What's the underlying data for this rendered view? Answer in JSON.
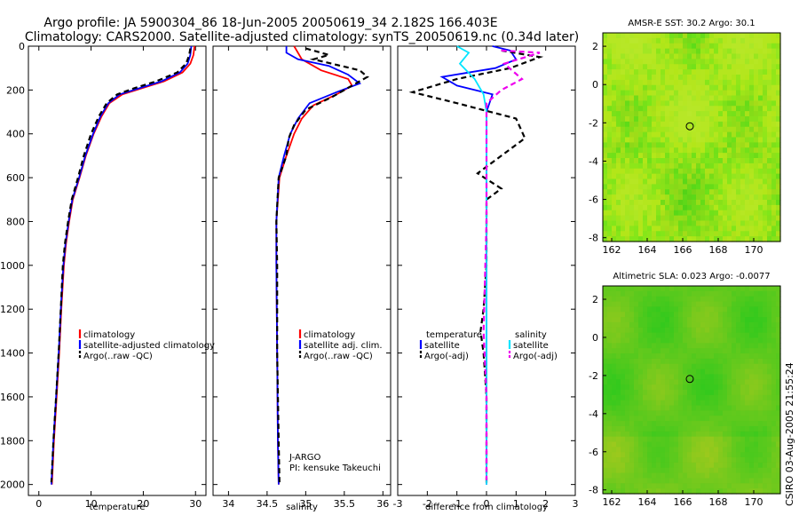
{
  "header": {
    "line1": "Argo profile: JA 5900304_86 18-Jun-2005 20050619_34 2.182S 166.403E",
    "line2": "Climatology: CARS2000. Satellite-adjusted climatology: synTS_20050619.nc (0.34d later)"
  },
  "colors": {
    "climatology": "#ff0000",
    "satellite": "#0000ff",
    "argo": "#000000",
    "sat_diff": "#00e5ff",
    "adj_diff": "#ee00ee"
  },
  "footer_stamp": "CSIRO 03-Aug-2005 21:55:24",
  "credit": {
    "line1": "J-ARGO",
    "line2": "PI: kensuke Takeuchi"
  },
  "chart_data": [
    {
      "type": "line",
      "panel": "temperature",
      "xlabel": "temperature",
      "ylabel": "",
      "xlim": [
        -2,
        32
      ],
      "ylim": [
        2050,
        0
      ],
      "xticks": [
        "0",
        "10",
        "20",
        "30"
      ],
      "xtick_values": [
        0,
        10,
        20,
        30
      ],
      "yticks": [
        "0",
        "200",
        "400",
        "600",
        "800",
        "1000",
        "1200",
        "1400",
        "1600",
        "1800",
        "2000"
      ],
      "ytick_values": [
        0,
        200,
        400,
        600,
        800,
        1000,
        1200,
        1400,
        1600,
        1800,
        2000
      ],
      "legend": [
        "climatology",
        "satellite-adjusted climatology",
        "Argo(..raw -QC)"
      ],
      "series": [
        {
          "name": "climatology",
          "style": "solid",
          "color": "#ff0000",
          "points": [
            [
              29.8,
              0
            ],
            [
              29.6,
              40
            ],
            [
              29.0,
              80
            ],
            [
              27.5,
              120
            ],
            [
              24.0,
              160
            ],
            [
              20.0,
              190
            ],
            [
              16.0,
              220
            ],
            [
              13.5,
              260
            ],
            [
              12.0,
              320
            ],
            [
              10.5,
              400
            ],
            [
              9.0,
              500
            ],
            [
              7.8,
              600
            ],
            [
              6.5,
              700
            ],
            [
              5.8,
              800
            ],
            [
              5.2,
              900
            ],
            [
              4.8,
              1000
            ],
            [
              4.3,
              1200
            ],
            [
              3.9,
              1400
            ],
            [
              3.4,
              1600
            ],
            [
              2.9,
              1800
            ],
            [
              2.5,
              2000
            ]
          ]
        },
        {
          "name": "satellite-adjusted climatology",
          "style": "solid",
          "color": "#0000ff",
          "points": [
            [
              29.2,
              0
            ],
            [
              29.0,
              40
            ],
            [
              28.5,
              80
            ],
            [
              27.0,
              120
            ],
            [
              23.5,
              160
            ],
            [
              19.5,
              190
            ],
            [
              15.5,
              220
            ],
            [
              13.3,
              260
            ],
            [
              11.8,
              320
            ],
            [
              10.4,
              400
            ],
            [
              8.9,
              500
            ],
            [
              7.7,
              600
            ],
            [
              6.4,
              700
            ],
            [
              5.7,
              800
            ],
            [
              5.1,
              900
            ],
            [
              4.7,
              1000
            ],
            [
              4.2,
              1200
            ],
            [
              3.8,
              1400
            ],
            [
              3.3,
              1600
            ],
            [
              2.8,
              1800
            ],
            [
              2.4,
              2000
            ]
          ]
        },
        {
          "name": "Argo(..raw -QC)",
          "style": "dashed",
          "color": "#000000",
          "points": [
            [
              29.0,
              10
            ],
            [
              28.8,
              40
            ],
            [
              28.2,
              80
            ],
            [
              26.5,
              120
            ],
            [
              22.5,
              160
            ],
            [
              18.5,
              190
            ],
            [
              15.0,
              220
            ],
            [
              13.0,
              260
            ],
            [
              11.5,
              320
            ],
            [
              10.0,
              400
            ],
            [
              8.6,
              500
            ],
            [
              7.5,
              600
            ],
            [
              6.3,
              700
            ],
            [
              5.6,
              800
            ],
            [
              5.0,
              900
            ],
            [
              4.6,
              1000
            ],
            [
              4.2,
              1200
            ],
            [
              3.8,
              1400
            ],
            [
              3.3,
              1600
            ],
            [
              2.8,
              1800
            ],
            [
              2.4,
              1990
            ]
          ]
        }
      ]
    },
    {
      "type": "line",
      "panel": "salinity",
      "xlabel": "salinity",
      "xlim": [
        33.8,
        36.1
      ],
      "ylim": [
        2050,
        0
      ],
      "xticks": [
        "34",
        "34.5",
        "35",
        "35.5",
        "36"
      ],
      "xtick_values": [
        34,
        34.5,
        35,
        35.5,
        36
      ],
      "legend": [
        "climatology",
        "satellite adj. clim.",
        "Argo(..raw -QC)"
      ],
      "series": [
        {
          "name": "climatology",
          "style": "solid",
          "color": "#ff0000",
          "points": [
            [
              34.85,
              0
            ],
            [
              34.95,
              60
            ],
            [
              35.2,
              110
            ],
            [
              35.55,
              150
            ],
            [
              35.6,
              180
            ],
            [
              35.4,
              220
            ],
            [
              35.1,
              270
            ],
            [
              34.95,
              330
            ],
            [
              34.85,
              400
            ],
            [
              34.75,
              500
            ],
            [
              34.66,
              600
            ],
            [
              34.62,
              800
            ],
            [
              34.62,
              1000
            ],
            [
              34.63,
              1400
            ],
            [
              34.64,
              1800
            ],
            [
              34.65,
              2000
            ]
          ]
        },
        {
          "name": "satellite adj. clim.",
          "style": "solid",
          "color": "#0000ff",
          "points": [
            [
              34.75,
              0
            ],
            [
              34.75,
              30
            ],
            [
              34.9,
              60
            ],
            [
              35.3,
              90
            ],
            [
              35.55,
              130
            ],
            [
              35.7,
              170
            ],
            [
              35.4,
              210
            ],
            [
              35.05,
              260
            ],
            [
              34.9,
              330
            ],
            [
              34.8,
              400
            ],
            [
              34.72,
              500
            ],
            [
              34.65,
              600
            ],
            [
              34.62,
              800
            ],
            [
              34.62,
              1000
            ],
            [
              34.63,
              1400
            ],
            [
              34.64,
              1800
            ],
            [
              34.65,
              2000
            ]
          ]
        },
        {
          "name": "Argo(..raw -QC)",
          "style": "dashed",
          "color": "#000000",
          "points": [
            [
              35.0,
              10
            ],
            [
              35.3,
              40
            ],
            [
              35.1,
              60
            ],
            [
              35.7,
              110
            ],
            [
              35.8,
              140
            ],
            [
              35.6,
              180
            ],
            [
              35.35,
              230
            ],
            [
              35.0,
              290
            ],
            [
              34.85,
              360
            ],
            [
              34.78,
              420
            ],
            [
              34.75,
              500
            ],
            [
              34.65,
              600
            ],
            [
              34.62,
              800
            ],
            [
              34.63,
              1000
            ],
            [
              34.63,
              1400
            ],
            [
              34.65,
              1800
            ],
            [
              34.66,
              1990
            ]
          ]
        }
      ]
    },
    {
      "type": "line",
      "panel": "difference",
      "xlabel": "difference from climatology",
      "xlim": [
        -3,
        3
      ],
      "ylim": [
        2050,
        0
      ],
      "xticks": [
        "-3",
        "-2",
        "-1",
        "0",
        "1",
        "2",
        "3"
      ],
      "xtick_values": [
        -3,
        -2,
        -1,
        0,
        1,
        2,
        3
      ],
      "legend_left_title": "temperature",
      "legend_left": [
        "satellite",
        "Argo(-adj)"
      ],
      "legend_right_title": "salinity",
      "legend_right": [
        "satellite",
        "Argo(-adj)"
      ],
      "series": [
        {
          "name": "temperature satellite",
          "style": "solid",
          "color": "#0000ff",
          "points": [
            [
              0.2,
              0
            ],
            [
              0.8,
              20
            ],
            [
              1.0,
              60
            ],
            [
              0.3,
              100
            ],
            [
              -1.5,
              140
            ],
            [
              -1.0,
              180
            ],
            [
              0.2,
              220
            ],
            [
              0.0,
              300
            ],
            [
              0.0,
              600
            ],
            [
              0.0,
              1000
            ],
            [
              0.0,
              1600
            ],
            [
              0.0,
              2000
            ]
          ]
        },
        {
          "name": "temperature Argo(-adj)",
          "style": "dashed",
          "color": "#000000",
          "points": [
            [
              0.5,
              20
            ],
            [
              1.8,
              50
            ],
            [
              0.8,
              100
            ],
            [
              -1.0,
              150
            ],
            [
              -2.5,
              210
            ],
            [
              -1.0,
              260
            ],
            [
              1.0,
              330
            ],
            [
              1.3,
              420
            ],
            [
              0.5,
              500
            ],
            [
              -0.3,
              580
            ],
            [
              0.5,
              650
            ],
            [
              0.0,
              700
            ],
            [
              0.0,
              1000
            ],
            [
              -0.1,
              1200
            ],
            [
              -0.2,
              1300
            ],
            [
              -0.1,
              1400
            ],
            [
              0.0,
              1600
            ],
            [
              0.0,
              2000
            ]
          ]
        },
        {
          "name": "salinity satellite",
          "style": "solid",
          "color": "#00e5ff",
          "points": [
            [
              -1.0,
              0
            ],
            [
              -0.6,
              30
            ],
            [
              -0.9,
              80
            ],
            [
              -0.4,
              150
            ],
            [
              -0.1,
              220
            ],
            [
              0.0,
              300
            ],
            [
              0.0,
              1000
            ],
            [
              0.0,
              2000
            ]
          ]
        },
        {
          "name": "salinity Argo(-adj)",
          "style": "dashed",
          "color": "#ee00ee",
          "points": [
            [
              0.5,
              20
            ],
            [
              1.8,
              30
            ],
            [
              0.6,
              80
            ],
            [
              1.2,
              150
            ],
            [
              0.5,
              200
            ],
            [
              0.0,
              260
            ],
            [
              0.0,
              800
            ],
            [
              -0.1,
              1300
            ],
            [
              0.0,
              1600
            ],
            [
              0.0,
              1980
            ]
          ]
        }
      ]
    },
    {
      "type": "heatmap",
      "panel": "sst_map",
      "title": "AMSR-E SST: 30.2 Argo: 30.1",
      "xlim": [
        161.5,
        171.5
      ],
      "ylim": [
        -8.2,
        2.7
      ],
      "xticks": [
        "162",
        "164",
        "166",
        "168",
        "170"
      ],
      "xtick_values": [
        162,
        164,
        166,
        168,
        170
      ],
      "yticks": [
        "2",
        "0",
        "-2",
        "-4",
        "-6",
        "-8"
      ],
      "ytick_values": [
        2,
        0,
        -2,
        -4,
        -6,
        -8
      ],
      "marker": {
        "lon": 166.4,
        "lat": -2.18
      }
    },
    {
      "type": "heatmap",
      "panel": "sla_map",
      "title": "Altimetric SLA: 0.023 Argo: -0.0077",
      "xlim": [
        161.5,
        171.5
      ],
      "ylim": [
        -8.2,
        2.7
      ],
      "xticks": [
        "162",
        "164",
        "166",
        "168",
        "170"
      ],
      "xtick_values": [
        162,
        164,
        166,
        168,
        170
      ],
      "yticks": [
        "2",
        "0",
        "-2",
        "-4",
        "-6",
        "-8"
      ],
      "ytick_values": [
        2,
        0,
        -2,
        -4,
        -6,
        -8
      ],
      "marker": {
        "lon": 166.4,
        "lat": -2.18
      }
    }
  ]
}
